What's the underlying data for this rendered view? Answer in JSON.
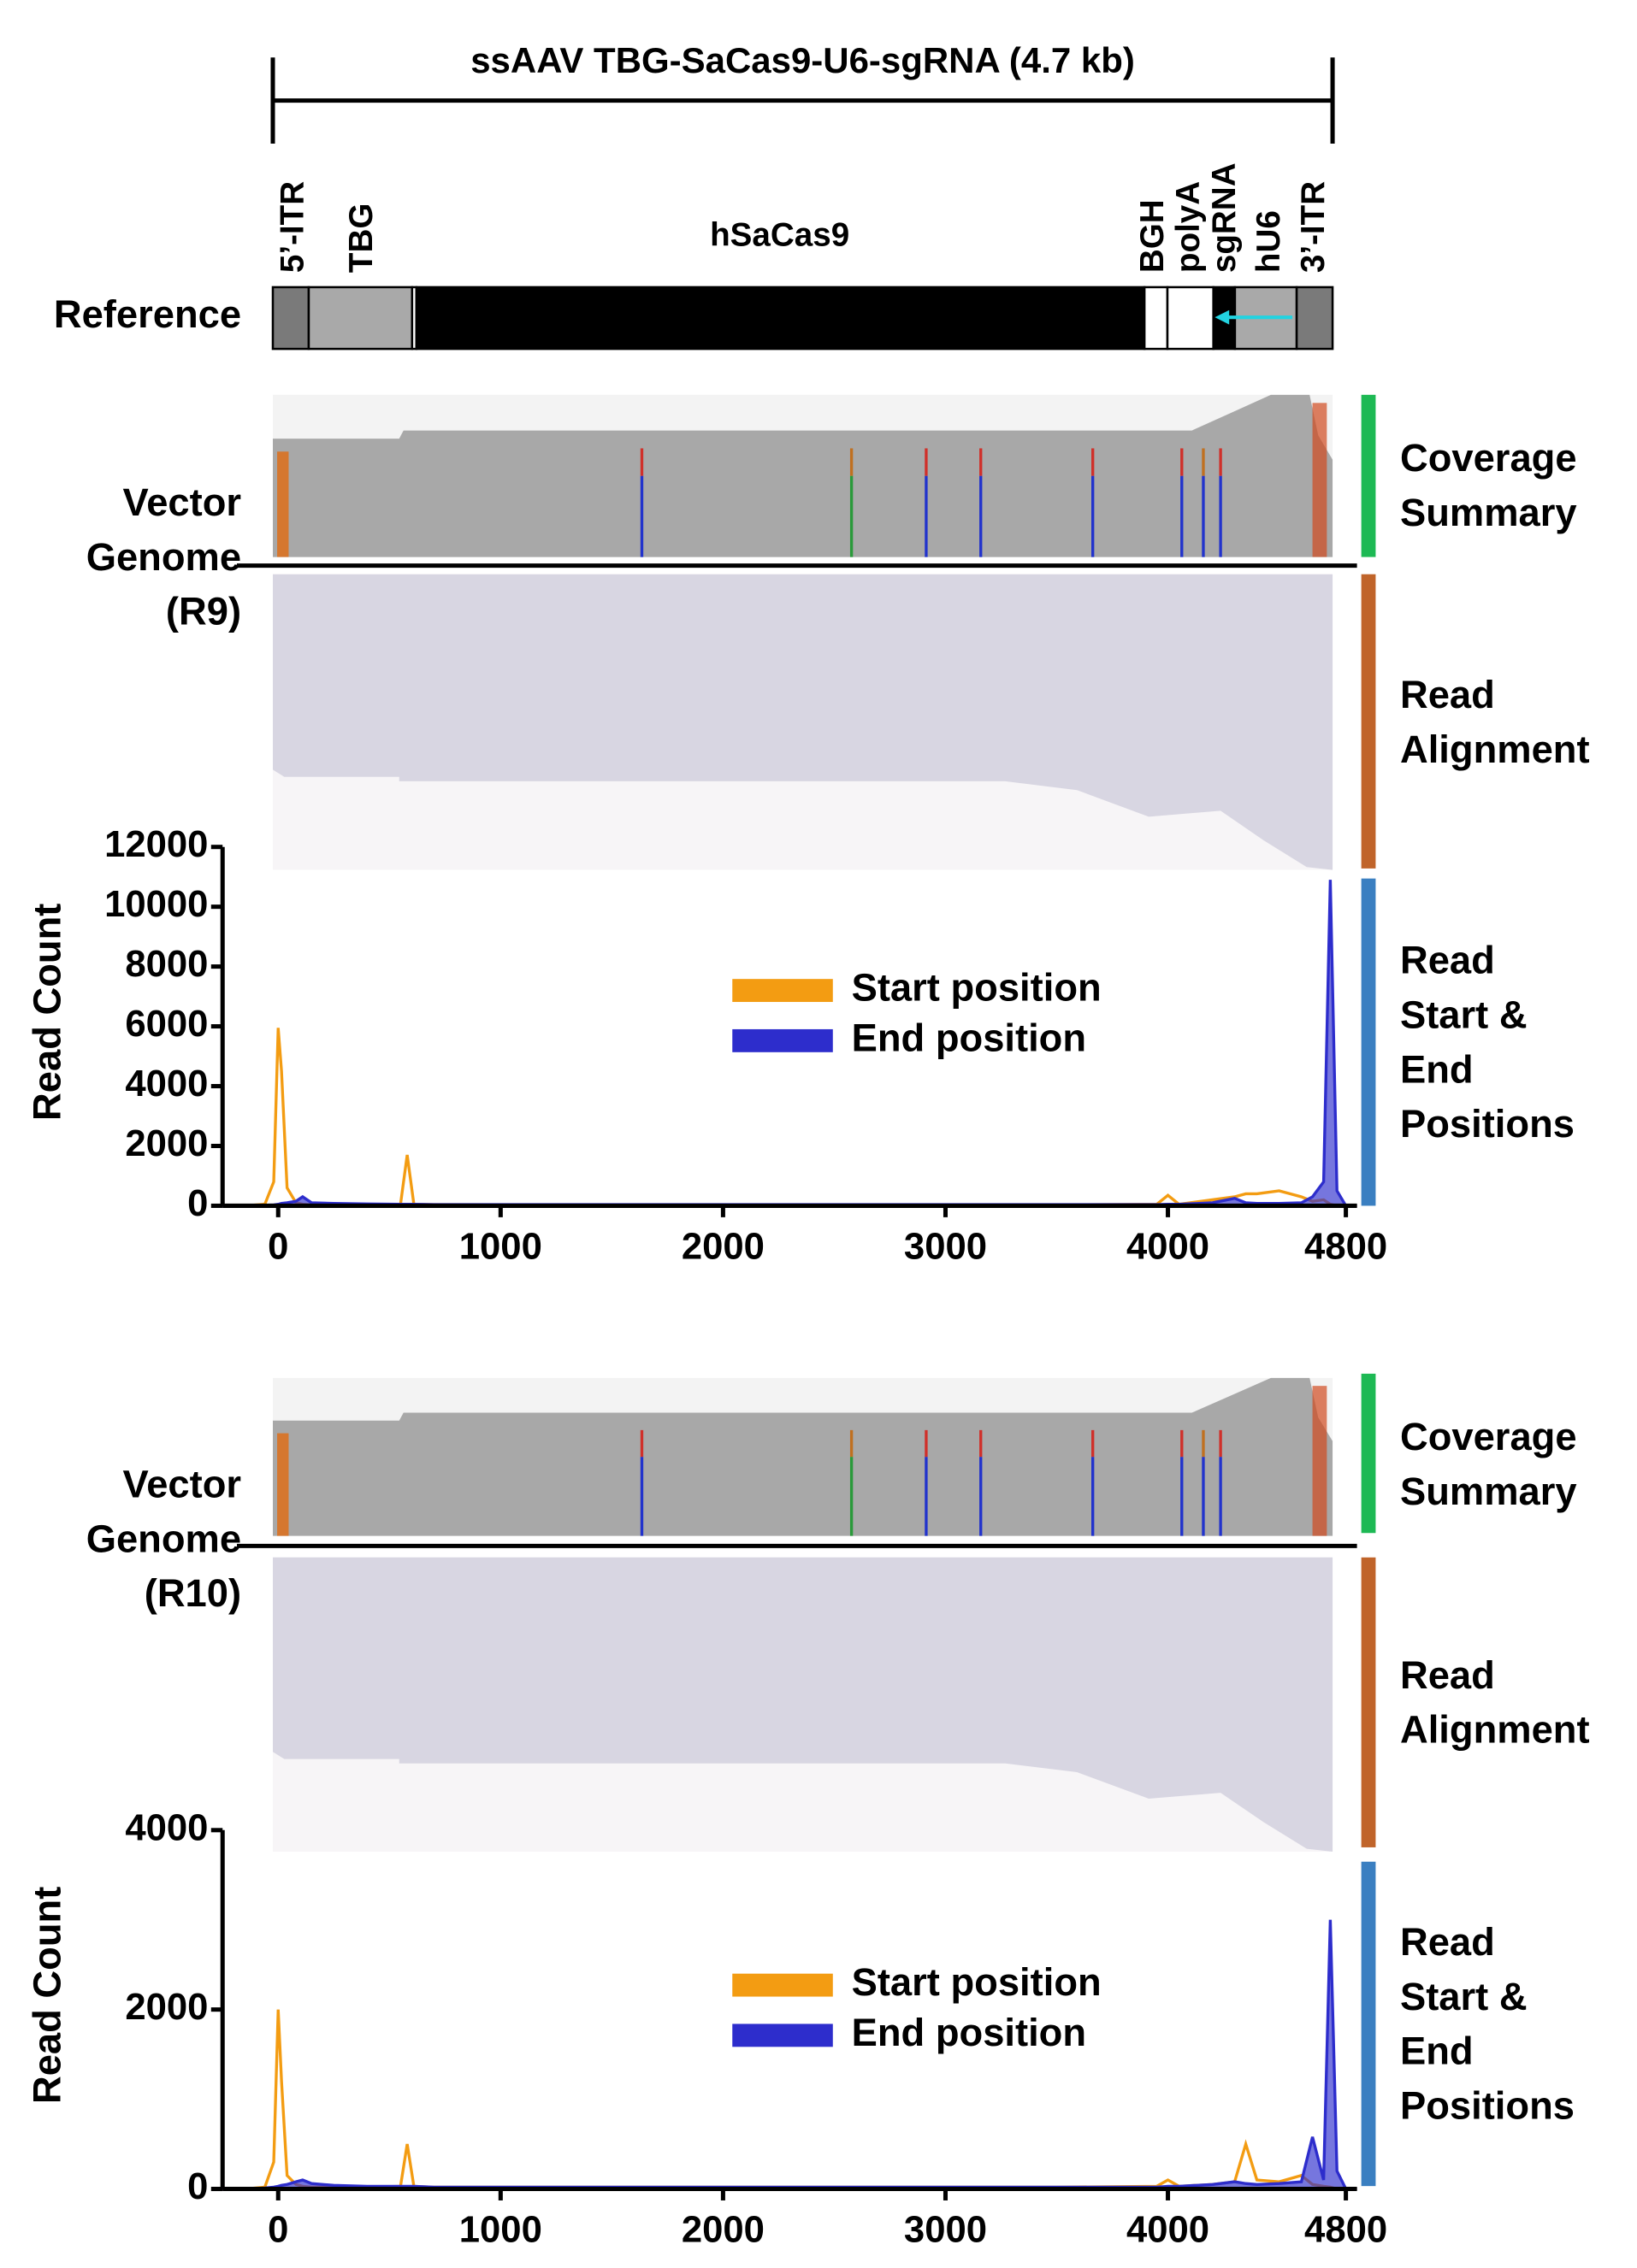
{
  "construct": {
    "title": "ssAAV TBG-SaCas9-U6-sgRNA (4.7 kb)",
    "row_label": "Reference",
    "features": [
      "5’-ITR",
      "TBG",
      "hSaCas9",
      "BGH",
      "polyA",
      "sgRNA",
      "hU6",
      "3’-ITR"
    ]
  },
  "panels": [
    {
      "genome_label": [
        "Vector",
        "Genome",
        "(R9)"
      ],
      "coverage_label": [
        "Coverage",
        "Summary"
      ],
      "alignment_label": [
        "Read",
        "Alignment"
      ],
      "positions_label": [
        "Read",
        "Start &",
        "End",
        "Positions"
      ]
    },
    {
      "genome_label": [
        "Vector",
        "Genome",
        "(R10)"
      ],
      "coverage_label": [
        "Coverage",
        "Summary"
      ],
      "alignment_label": [
        "Read",
        "Alignment"
      ],
      "positions_label": [
        "Read",
        "Start &",
        "End",
        "Positions"
      ]
    }
  ],
  "chart_data": [
    {
      "type": "line",
      "ylabel": "Read Count",
      "x": [
        -250,
        -150,
        -60,
        -20,
        0,
        15,
        40,
        80,
        110,
        150,
        250,
        400,
        550,
        580,
        610,
        700,
        1500,
        2500,
        3500,
        3950,
        4000,
        4050,
        4200,
        4300,
        4350,
        4400,
        4500,
        4600,
        4650,
        4700,
        4730,
        4760,
        4800,
        4850
      ],
      "series": [
        {
          "name": "Start position",
          "color": "#f39c12",
          "values": [
            0,
            0,
            50,
            800,
            5950,
            4500,
            600,
            100,
            50,
            30,
            20,
            30,
            50,
            1700,
            50,
            40,
            30,
            30,
            30,
            50,
            350,
            50,
            200,
            300,
            400,
            400,
            500,
            300,
            150,
            200,
            50,
            0,
            0,
            0
          ]
        },
        {
          "name": "End position",
          "color": "#2d2dcc",
          "values": [
            0,
            0,
            20,
            30,
            50,
            80,
            100,
            150,
            300,
            100,
            80,
            60,
            50,
            50,
            50,
            40,
            40,
            40,
            40,
            40,
            50,
            50,
            100,
            250,
            100,
            80,
            80,
            100,
            300,
            800,
            10900,
            500,
            0,
            0
          ]
        }
      ],
      "xlim": [
        -250,
        4850
      ],
      "ylim": [
        0,
        12000
      ],
      "xticks": [
        0,
        1000,
        2000,
        3000,
        4000,
        4800
      ],
      "yticks": [
        0,
        2000,
        4000,
        6000,
        8000,
        10000,
        12000
      ]
    },
    {
      "type": "line",
      "ylabel": "Read Count",
      "x": [
        -250,
        -150,
        -60,
        -20,
        0,
        15,
        40,
        80,
        110,
        150,
        250,
        400,
        550,
        580,
        610,
        700,
        1500,
        2500,
        3500,
        3950,
        4000,
        4050,
        4200,
        4300,
        4350,
        4400,
        4500,
        4600,
        4650,
        4700,
        4730,
        4760,
        4800,
        4850
      ],
      "series": [
        {
          "name": "Start position",
          "color": "#f39c12",
          "values": [
            0,
            0,
            20,
            300,
            2000,
            1200,
            150,
            50,
            30,
            20,
            20,
            20,
            30,
            500,
            30,
            20,
            20,
            20,
            20,
            30,
            100,
            30,
            50,
            80,
            500,
            100,
            80,
            150,
            50,
            30,
            20,
            0,
            0,
            0
          ]
        },
        {
          "name": "End position",
          "color": "#2d2dcc",
          "values": [
            0,
            0,
            10,
            20,
            30,
            40,
            50,
            80,
            100,
            60,
            40,
            30,
            30,
            30,
            30,
            20,
            20,
            20,
            20,
            20,
            30,
            30,
            50,
            80,
            60,
            50,
            60,
            80,
            580,
            100,
            3000,
            200,
            0,
            0
          ]
        }
      ],
      "xlim": [
        -250,
        4850
      ],
      "ylim": [
        0,
        4000
      ],
      "xticks": [
        0,
        1000,
        2000,
        3000,
        4000,
        4800
      ],
      "yticks": [
        0,
        2000,
        4000
      ]
    }
  ]
}
